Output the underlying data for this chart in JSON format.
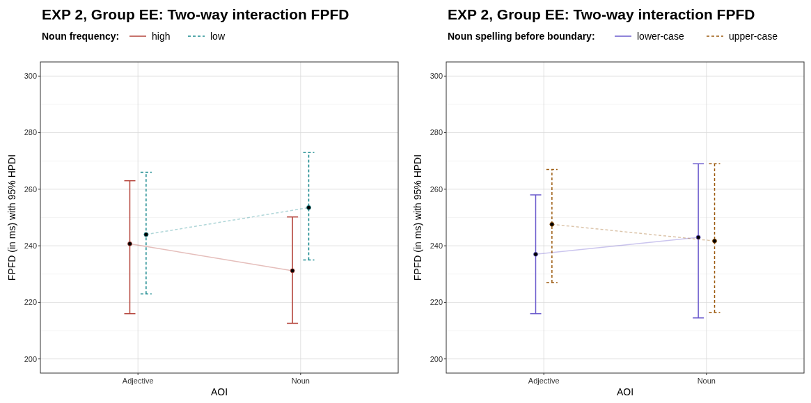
{
  "chart_data": [
    {
      "type": "line",
      "title": "EXP 2, Group EE: Two-way interaction FPFD",
      "xlabel": "AOI",
      "ylabel": "FPFD (in ms) with 95% HPDI",
      "legend_title": "Noun frequency:",
      "categories": [
        "Adjective",
        "Noun"
      ],
      "ylim": [
        195,
        305
      ],
      "yticks": [
        200,
        220,
        240,
        260,
        280,
        300
      ],
      "grid": true,
      "legend": "top",
      "marker": "circle",
      "series": [
        {
          "name": "high",
          "color": "#b5443b",
          "line_style": "solid",
          "values": [
            240.7,
            231.2
          ],
          "errors": [
            [
              216,
              263
            ],
            [
              212.6,
              250.2
            ]
          ]
        },
        {
          "name": "low",
          "color": "#1b8a8f",
          "line_style": "dashed",
          "values": [
            244,
            253.5
          ],
          "errors": [
            [
              223,
              266
            ],
            [
              235,
              273
            ]
          ]
        }
      ]
    },
    {
      "type": "line",
      "title": "EXP 2, Group EE: Two-way interaction FPFD",
      "xlabel": "AOI",
      "ylabel": "FPFD (in ms) with 95% HPDI",
      "legend_title": "Noun spelling before boundary:",
      "categories": [
        "Adjective",
        "Noun"
      ],
      "ylim": [
        195,
        305
      ],
      "yticks": [
        200,
        220,
        240,
        260,
        280,
        300
      ],
      "grid": true,
      "legend": "top",
      "marker": "circle",
      "series": [
        {
          "name": "lower-case",
          "color": "#6a5acd",
          "line_style": "solid",
          "values": [
            237,
            243
          ],
          "errors": [
            [
              216,
              258
            ],
            [
              214.5,
              269
            ]
          ]
        },
        {
          "name": "upper-case",
          "color": "#9c5a0e",
          "line_style": "dashed",
          "values": [
            247.6,
            241.7
          ],
          "errors": [
            [
              227,
              267
            ],
            [
              216.4,
              269
            ]
          ]
        }
      ]
    }
  ]
}
